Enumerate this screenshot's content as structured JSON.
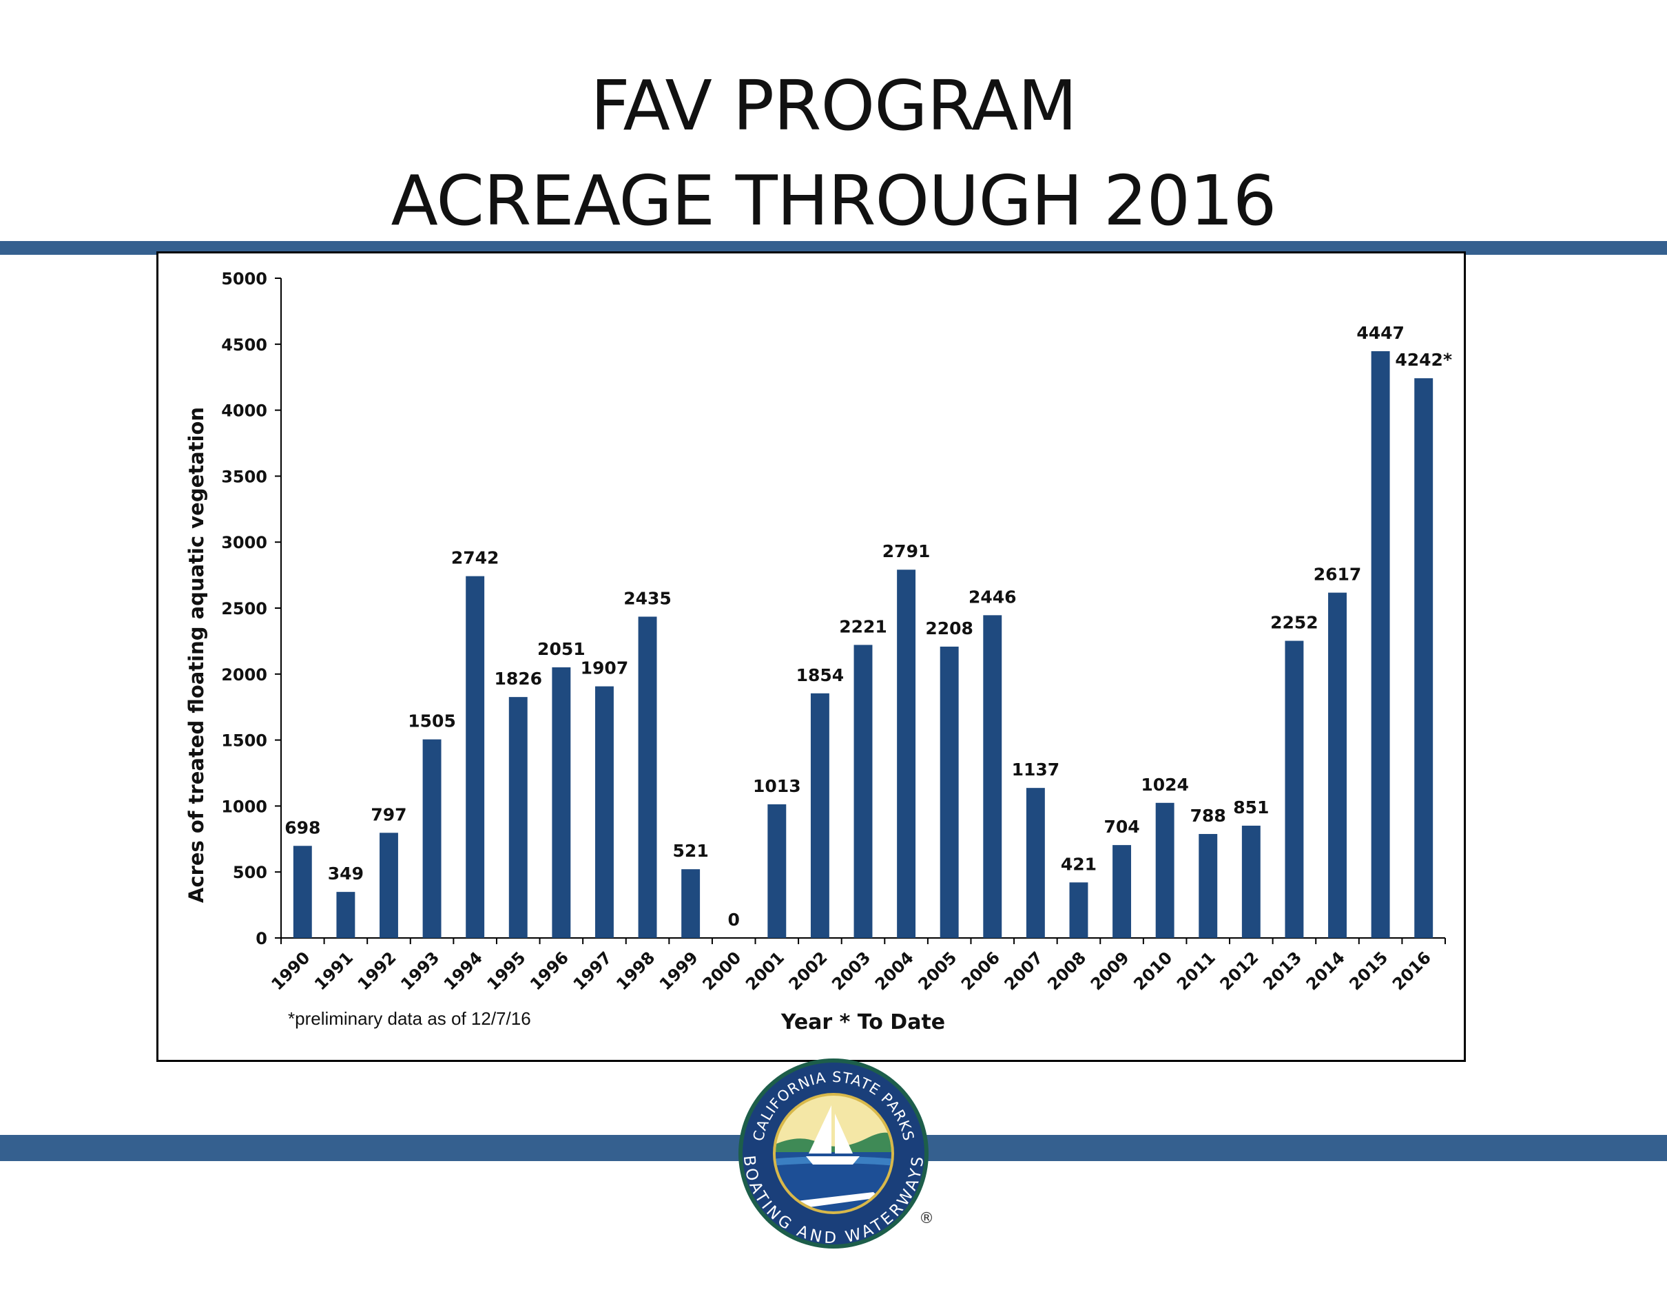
{
  "title_line1": "FAV PROGRAM",
  "title_line2": "ACREAGE THROUGH 2016",
  "logo": {
    "top_text": "CALIFORNIA STATE PARKS",
    "bottom_text": "BOATING AND WATERWAYS",
    "registered": "®"
  },
  "chart_data": {
    "type": "bar",
    "title": "",
    "ylabel": "Acres of treated floating aquatic vegetation",
    "xlabel": "Year * To Date",
    "footnote": "*preliminary data as of 12/7/16",
    "ylim": [
      0,
      5000
    ],
    "yticks": [
      0,
      500,
      1000,
      1500,
      2000,
      2500,
      3000,
      3500,
      4000,
      4500,
      5000
    ],
    "grid": false,
    "categories": [
      "1990",
      "1991",
      "1992",
      "1993",
      "1994",
      "1995",
      "1996",
      "1997",
      "1998",
      "1999",
      "2000",
      "2001",
      "2002",
      "2003",
      "2004",
      "2005",
      "2006",
      "2007",
      "2008",
      "2009",
      "2010",
      "2011",
      "2012",
      "2013",
      "2014",
      "2015",
      "2016"
    ],
    "values": [
      698,
      349,
      797,
      1505,
      2742,
      1826,
      2051,
      1907,
      2435,
      521,
      0,
      1013,
      1854,
      2221,
      2791,
      2208,
      2446,
      1137,
      421,
      704,
      1024,
      788,
      851,
      2252,
      2617,
      4447,
      4242
    ],
    "data_labels": [
      "698",
      "349",
      "797",
      "1505",
      "2742",
      "1826",
      "2051",
      "1907",
      "2435",
      "521",
      "0",
      "1013",
      "1854",
      "2221",
      "2791",
      "2208",
      "2446",
      "1137",
      "421",
      "704",
      "1024",
      "788",
      "851",
      "2252",
      "2617",
      "4447",
      "4242*"
    ],
    "bar_color": "#1f4a7f"
  }
}
